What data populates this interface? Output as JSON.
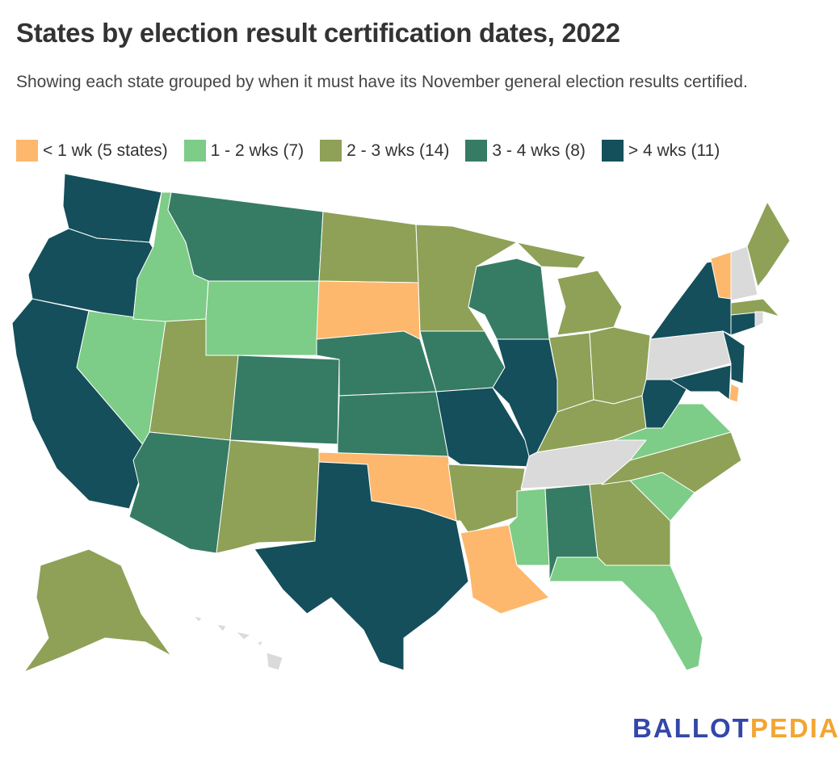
{
  "title": "States by election result certification dates, 2022",
  "subtitle": "Showing each state grouped by when it must have its November general election results certified.",
  "legend": [
    {
      "label": "< 1 wk (5 states)",
      "color": "#FDB86E"
    },
    {
      "label": "1 - 2 wks (7)",
      "color": "#7DCC87"
    },
    {
      "label": "2 - 3 wks (14)",
      "color": "#8EA157"
    },
    {
      "label": "3 - 4 wks (8)",
      "color": "#367C64"
    },
    {
      "label": "> 4 wks (11)",
      "color": "#144F5B"
    }
  ],
  "no_data_color": "#DADADA",
  "chart_data": {
    "type": "choropleth",
    "groups": {
      "0": [
        "SD",
        "OK",
        "LA",
        "VT",
        "DE"
      ],
      "1": [
        "ID",
        "WY",
        "NV",
        "VA",
        "SC",
        "MS",
        "FL"
      ],
      "2": [
        "ND",
        "MN",
        "UT",
        "NM",
        "AR",
        "MI",
        "IN",
        "OH",
        "KY",
        "NC",
        "GA",
        "ME",
        "MA",
        "AK"
      ],
      "3": [
        "MT",
        "NE",
        "KS",
        "CO",
        "AZ",
        "IA",
        "WI",
        "AL"
      ],
      "4": [
        "WA",
        "OR",
        "CA",
        "TX",
        "MO",
        "IL",
        "NY",
        "WV",
        "MD",
        "NJ",
        "CT"
      ],
      "none": [
        "PA",
        "TN",
        "NH",
        "RI",
        "HI"
      ]
    }
  },
  "logo": {
    "part1": "BALLOT",
    "part2": "PEDIA"
  }
}
